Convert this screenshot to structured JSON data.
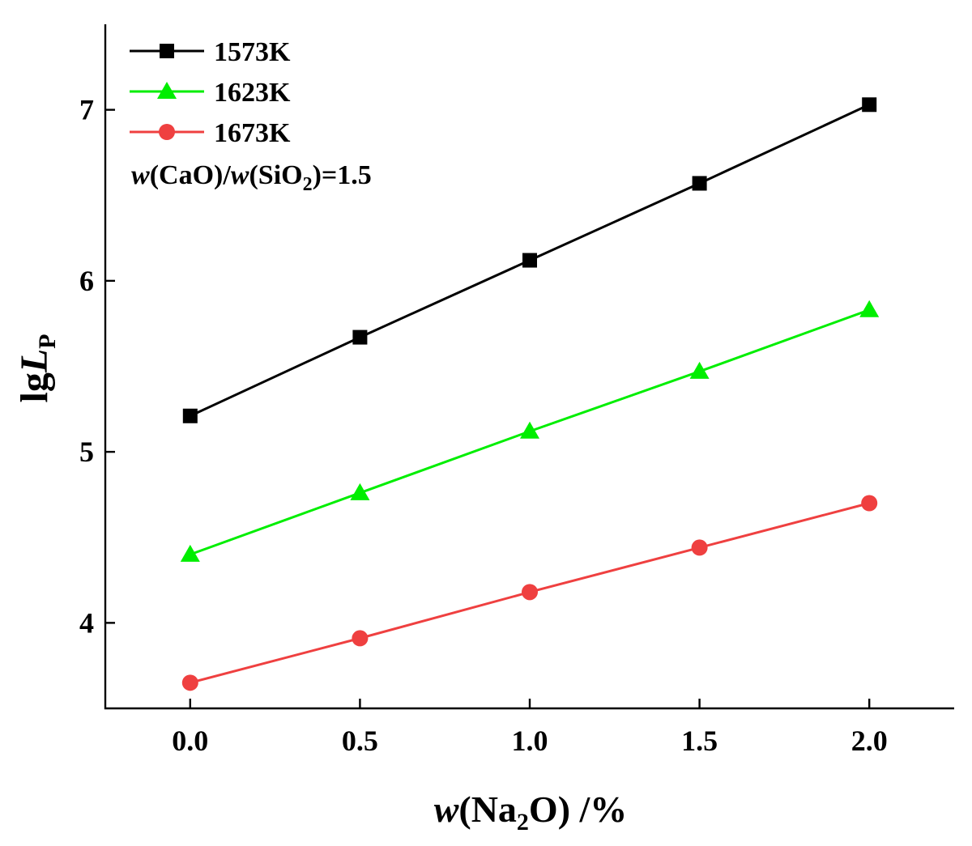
{
  "chart_data": {
    "type": "line",
    "xlabel_parts": {
      "var": "w",
      "open": "(Na",
      "sub": "2",
      "close": "O) /%"
    },
    "ylabel_parts": {
      "main": "lg",
      "var": "L",
      "sub": "P"
    },
    "xlim": [
      -0.25,
      2.25
    ],
    "ylim": [
      3.5,
      7.5
    ],
    "x_ticks": [
      0.0,
      0.5,
      1.0,
      1.5,
      2.0
    ],
    "x_tick_labels": [
      "0.0",
      "0.5",
      "1.0",
      "1.5",
      "2.0"
    ],
    "y_ticks": [
      4,
      5,
      6,
      7
    ],
    "y_tick_labels": [
      "4",
      "5",
      "6",
      "7"
    ],
    "x": [
      0.0,
      0.5,
      1.0,
      1.5,
      2.0
    ],
    "series": [
      {
        "name": "1573K",
        "color": "#000000",
        "marker": "square",
        "values": [
          5.21,
          5.67,
          6.12,
          6.57,
          7.03
        ]
      },
      {
        "name": "1623K",
        "color": "#00ee00",
        "marker": "triangle",
        "values": [
          4.4,
          4.76,
          5.12,
          5.47,
          5.83
        ]
      },
      {
        "name": "1673K",
        "color": "#ef4040",
        "marker": "circle",
        "values": [
          3.65,
          3.91,
          4.18,
          4.44,
          4.7
        ]
      }
    ],
    "annotation_parts": {
      "w1": "w",
      "t1": "(CaO)/",
      "w2": "w",
      "t2": "(SiO",
      "sub": "2",
      "t3": ")=1.5"
    },
    "legend_position": "top-left",
    "grid": false
  }
}
